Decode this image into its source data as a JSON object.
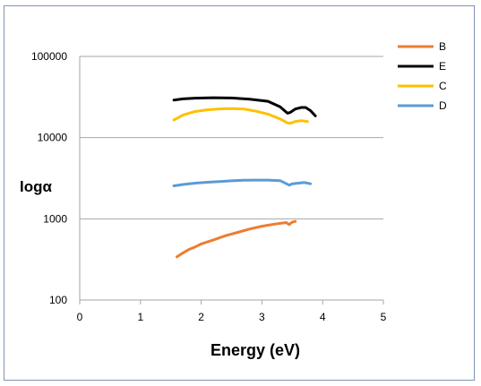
{
  "chart_data": {
    "type": "line",
    "title": "",
    "xlabel": "Energy (eV)",
    "ylabel": "logα",
    "xlim": [
      0,
      5
    ],
    "ylim": [
      100,
      100000
    ],
    "yscale": "log",
    "xticks": [
      "0",
      "1",
      "2",
      "3",
      "4",
      "5"
    ],
    "yticks": [
      "100",
      "1000",
      "10000",
      "100000"
    ],
    "grid": "horizontal",
    "legend_position": "top-right",
    "legend": [
      "B",
      "E",
      "C",
      "D"
    ],
    "series": [
      {
        "name": "B",
        "color": "#ed7d31",
        "points": [
          [
            1.6,
            340
          ],
          [
            1.7,
            380
          ],
          [
            1.8,
            420
          ],
          [
            1.9,
            450
          ],
          [
            2.0,
            490
          ],
          [
            2.2,
            550
          ],
          [
            2.4,
            620
          ],
          [
            2.6,
            680
          ],
          [
            2.8,
            750
          ],
          [
            3.0,
            810
          ],
          [
            3.2,
            860
          ],
          [
            3.4,
            900
          ],
          [
            3.45,
            850
          ],
          [
            3.5,
            910
          ],
          [
            3.55,
            930
          ]
        ]
      },
      {
        "name": "E",
        "color": "#000000",
        "points": [
          [
            1.55,
            29000
          ],
          [
            1.7,
            30000
          ],
          [
            1.9,
            30600
          ],
          [
            2.2,
            31000
          ],
          [
            2.5,
            30800
          ],
          [
            2.8,
            29800
          ],
          [
            3.1,
            28000
          ],
          [
            3.3,
            24000
          ],
          [
            3.42,
            20000
          ],
          [
            3.47,
            20500
          ],
          [
            3.55,
            22500
          ],
          [
            3.65,
            23500
          ],
          [
            3.72,
            23500
          ],
          [
            3.8,
            21500
          ],
          [
            3.88,
            18500
          ]
        ]
      },
      {
        "name": "C",
        "color": "#ffc000",
        "points": [
          [
            1.55,
            16500
          ],
          [
            1.7,
            19000
          ],
          [
            1.9,
            21000
          ],
          [
            2.1,
            22000
          ],
          [
            2.3,
            22600
          ],
          [
            2.5,
            22800
          ],
          [
            2.7,
            22500
          ],
          [
            2.9,
            21200
          ],
          [
            3.1,
            19500
          ],
          [
            3.3,
            17000
          ],
          [
            3.42,
            15200
          ],
          [
            3.46,
            15000
          ],
          [
            3.55,
            15800
          ],
          [
            3.65,
            16200
          ],
          [
            3.75,
            15800
          ]
        ]
      },
      {
        "name": "D",
        "color": "#5b9bd5",
        "points": [
          [
            1.55,
            2550
          ],
          [
            1.7,
            2650
          ],
          [
            1.9,
            2750
          ],
          [
            2.1,
            2820
          ],
          [
            2.3,
            2880
          ],
          [
            2.5,
            2940
          ],
          [
            2.7,
            2980
          ],
          [
            2.9,
            3000
          ],
          [
            3.1,
            3000
          ],
          [
            3.3,
            2950
          ],
          [
            3.45,
            2600
          ],
          [
            3.5,
            2700
          ],
          [
            3.6,
            2750
          ],
          [
            3.7,
            2800
          ],
          [
            3.8,
            2700
          ]
        ]
      }
    ]
  }
}
